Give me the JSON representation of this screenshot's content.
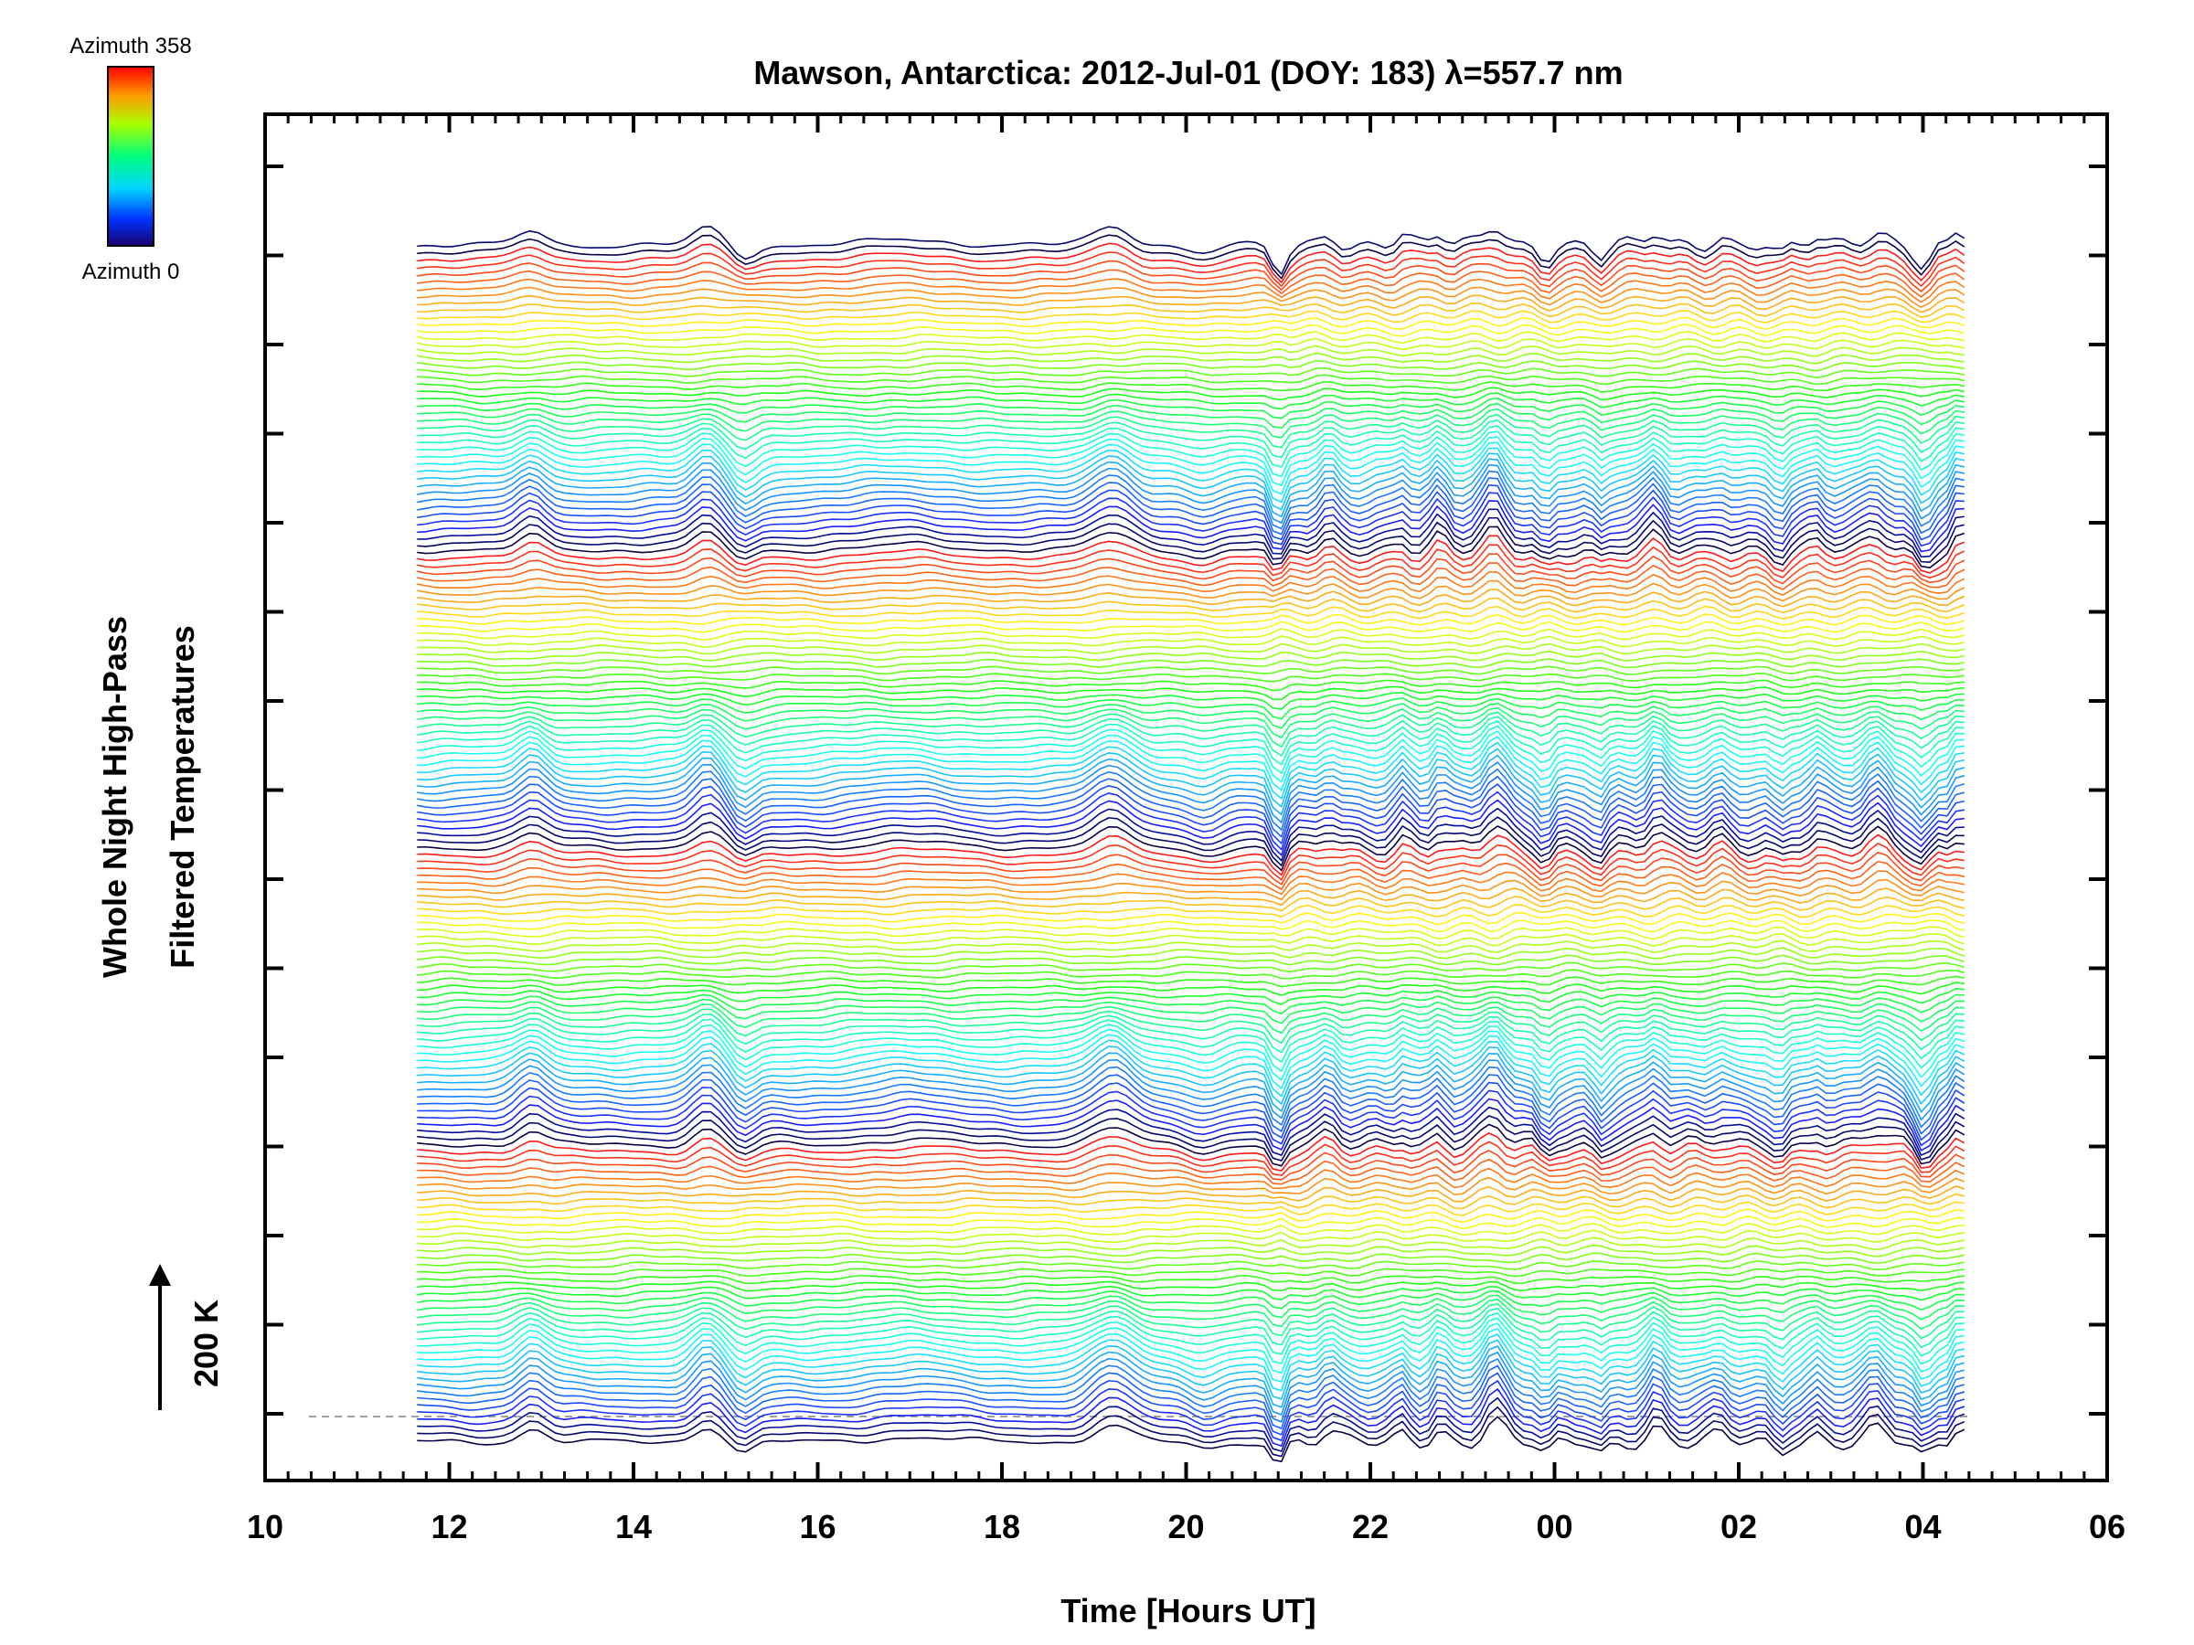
{
  "chart_data": {
    "type": "line",
    "title": "Mawson, Antarctica: 2012-Jul-01 (DOY: 183) λ=557.7 nm",
    "xlabel": "Time [Hours UT]",
    "ylabel_line1": "Whole Night High-Pass",
    "ylabel_line2": "Filtered Temperatures",
    "scale_label": "200 K",
    "x_ticks": [
      "10",
      "12",
      "14",
      "16",
      "18",
      "20",
      "22",
      "00",
      "02",
      "04",
      "06"
    ],
    "xlim": [
      10,
      30
    ],
    "colorbar": {
      "top_label": "Azimuth 358",
      "bottom_label": "Azimuth 0",
      "colors": [
        "#ff0000",
        "#ff8000",
        "#ffff00",
        "#00ff00",
        "#00ffff",
        "#0080ff",
        "#0000ff",
        "#000080"
      ]
    },
    "baseline_color": "#a0a0a0",
    "x_range_of_data": [
      11.65,
      28.45
    ],
    "series_count": 170
  }
}
